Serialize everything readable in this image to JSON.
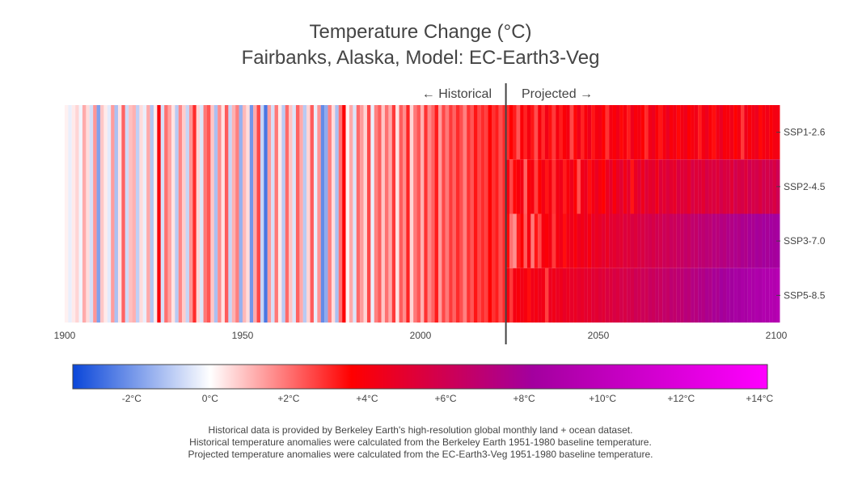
{
  "title_line1": "Temperature Change (°C)",
  "title_line2": "Fairbanks, Alaska, Model: EC-Earth3-Veg",
  "annotations": {
    "historical": "← Historical",
    "projected": "Projected →"
  },
  "footnotes": [
    "Historical data is provided by Berkeley Earth's high-resolution global monthly land + ocean dataset.",
    "Historical temperature anomalies were calculated from the Berkeley Earth 1951-1980 baseline temperature.",
    "Projected temperature anomalies were calculated from the EC-Earth3-Veg 1951-1980 baseline temperature."
  ],
  "chart_data": {
    "type": "heatmap",
    "x_axis": {
      "range": [
        1900,
        2100
      ],
      "ticks": [
        1900,
        1950,
        2000,
        2050,
        2100
      ]
    },
    "divider_year": 2024,
    "rows": [
      "SSP1-2.6",
      "SSP2-4.5",
      "SSP3-7.0",
      "SSP5-8.5"
    ],
    "historical": {
      "years": [
        1900,
        2023
      ],
      "values": [
        0.2,
        -0.3,
        0.3,
        0.6,
        -0.2,
        1.2,
        0.5,
        -0.6,
        1.5,
        -1.8,
        0.8,
        0.3,
        -0.4,
        1.4,
        -1.2,
        0.4,
        2.2,
        -0.7,
        0.9,
        1.1,
        -0.9,
        0.5,
        -0.3,
        1.2,
        -1.1,
        0.3,
        3.9,
        -0.6,
        2.0,
        1.3,
        0.4,
        -1.0,
        1.7,
        0.7,
        -0.8,
        1.5,
        3.0,
        0.6,
        -0.5,
        1.9,
        2.4,
        0.8,
        -1.2,
        1.6,
        0.4,
        2.3,
        -0.8,
        1.1,
        1.8,
        -1.5,
        1.0,
        0.5,
        -2.0,
        1.2,
        2.6,
        -0.8,
        -2.6,
        1.4,
        -0.6,
        1.9,
        0.3,
        -1.0,
        2.1,
        0.8,
        -0.5,
        2.2,
        1.2,
        -1.0,
        0.6,
        2.3,
        -0.3,
        1.5,
        -2.2,
        -1.6,
        1.8,
        0.5,
        -1.2,
        2.0,
        3.7,
        0.2,
        1.2,
        -0.5,
        2.1,
        1.4,
        0.6,
        2.6,
        -0.3,
        1.8,
        2.3,
        0.8,
        2.0,
        1.2,
        2.8,
        0.4,
        2.3,
        1.6,
        3.1,
        0.6,
        1.9,
        2.4,
        1.1,
        2.9,
        1.7,
        2.2,
        3.2,
        1.4,
        2.6,
        1.9,
        2.8,
        2.2,
        3.0,
        2.5,
        1.8,
        2.9,
        2.4,
        3.3,
        2.6,
        3.0,
        2.7,
        3.6,
        2.9,
        3.2,
        2.5,
        3.0
      ]
    },
    "projected": {
      "years": [
        2024,
        2100
      ],
      "series": [
        {
          "name": "SSP1-2.6",
          "values": [
            3.0,
            3.6,
            3.2,
            2.4,
            3.8,
            3.1,
            4.0,
            3.3,
            2.5,
            3.9,
            3.0,
            4.2,
            3.4,
            2.8,
            4.0,
            3.2,
            3.8,
            4.1,
            2.6,
            3.5,
            4.3,
            3.1,
            3.9,
            4.4,
            3.3,
            4.0,
            4.2,
            3.6,
            2.9,
            4.1,
            3.8,
            4.3,
            3.5,
            4.0,
            3.2,
            4.4,
            3.9,
            4.1,
            3.7,
            3.0,
            4.2,
            4.5,
            3.8,
            3.3,
            4.0,
            4.6,
            3.9,
            4.2,
            3.5,
            4.1,
            4.4,
            3.7,
            4.0,
            4.3,
            3.2,
            4.1,
            4.5,
            3.8,
            3.4,
            4.2,
            4.6,
            3.9,
            4.0,
            4.3,
            3.6,
            4.1,
            2.8,
            4.4,
            3.9,
            4.2,
            4.5,
            3.5,
            4.0,
            4.3,
            3.8,
            4.1,
            4.2
          ]
        },
        {
          "name": "SSP2-4.5",
          "values": [
            4.0,
            2.6,
            3.5,
            3.9,
            4.1,
            2.2,
            3.8,
            4.0,
            2.7,
            3.6,
            4.2,
            3.3,
            4.0,
            2.9,
            4.1,
            4.3,
            3.2,
            3.9,
            4.4,
            3.7,
            2.5,
            4.2,
            4.5,
            3.4,
            4.1,
            4.6,
            4.0,
            3.6,
            4.5,
            4.8,
            3.9,
            4.7,
            5.0,
            4.2,
            4.9,
            3.3,
            4.6,
            5.1,
            4.4,
            5.2,
            4.8,
            5.0,
            4.3,
            5.3,
            4.9,
            5.4,
            5.0,
            4.7,
            5.5,
            5.1,
            5.3,
            4.8,
            5.6,
            5.2,
            5.4,
            5.0,
            5.7,
            5.3,
            5.5,
            5.2,
            5.8,
            5.4,
            5.6,
            5.1,
            5.9,
            5.5,
            5.7,
            5.3,
            6.0,
            5.6,
            5.8,
            5.4,
            6.0,
            5.7,
            5.9,
            5.5,
            6.1
          ]
        },
        {
          "name": "SSP3-7.0",
          "values": [
            3.5,
            2.0,
            1.6,
            3.2,
            3.7,
            2.3,
            4.0,
            1.9,
            3.3,
            2.6,
            4.0,
            3.8,
            4.1,
            2.8,
            4.0,
            4.3,
            3.4,
            4.2,
            4.4,
            3.9,
            4.5,
            4.2,
            4.6,
            4.0,
            4.8,
            4.5,
            4.7,
            5.0,
            4.6,
            5.1,
            4.9,
            5.2,
            5.0,
            5.4,
            5.2,
            5.5,
            5.3,
            5.7,
            5.5,
            5.8,
            5.9,
            5.6,
            6.0,
            5.8,
            6.2,
            6.0,
            6.3,
            6.1,
            6.5,
            6.3,
            6.7,
            6.4,
            6.8,
            6.6,
            7.0,
            6.8,
            7.1,
            6.9,
            7.3,
            7.1,
            7.4,
            7.2,
            7.6,
            7.4,
            7.7,
            7.5,
            7.8,
            7.6,
            8.0,
            7.8,
            8.1,
            7.9,
            8.2,
            8.0,
            8.3,
            8.1,
            8.4
          ]
        },
        {
          "name": "SSP5-8.5",
          "values": [
            4.0,
            2.8,
            4.1,
            3.9,
            4.2,
            4.0,
            3.4,
            4.3,
            4.1,
            4.4,
            4.2,
            2.7,
            4.5,
            4.3,
            4.6,
            4.4,
            4.7,
            4.5,
            4.8,
            4.6,
            4.9,
            4.7,
            5.0,
            4.8,
            5.2,
            5.0,
            5.3,
            5.1,
            5.5,
            5.3,
            5.6,
            5.4,
            5.8,
            5.6,
            5.9,
            5.7,
            6.1,
            5.9,
            6.2,
            6.0,
            6.4,
            6.2,
            6.5,
            6.3,
            6.7,
            6.5,
            6.9,
            6.7,
            7.0,
            6.8,
            7.2,
            7.0,
            7.4,
            7.2,
            7.6,
            7.4,
            7.8,
            7.6,
            8.0,
            7.8,
            8.2,
            8.0,
            8.4,
            8.2,
            8.5,
            8.3,
            8.7,
            8.5,
            8.9,
            8.7,
            9.0,
            8.8,
            9.2,
            9.0,
            9.4,
            9.2,
            9.5
          ]
        }
      ]
    },
    "colorbar": {
      "range": [
        -3.5,
        14.2
      ],
      "stops": [
        {
          "v": -3.5,
          "c": "#0a46d9"
        },
        {
          "v": 0,
          "c": "#ffffff"
        },
        {
          "v": 3.6,
          "c": "#ff0000"
        },
        {
          "v": 8.2,
          "c": "#a3009e"
        },
        {
          "v": 14.2,
          "c": "#ff00ff"
        }
      ],
      "ticks": [
        {
          "v": -2,
          "label": "-2°C"
        },
        {
          "v": 0,
          "label": "0°C"
        },
        {
          "v": 2,
          "label": "+2°C"
        },
        {
          "v": 4,
          "label": "+4°C"
        },
        {
          "v": 6,
          "label": "+6°C"
        },
        {
          "v": 8,
          "label": "+8°C"
        },
        {
          "v": 10,
          "label": "+10°C"
        },
        {
          "v": 12,
          "label": "+12°C"
        },
        {
          "v": 14,
          "label": "+14°C"
        }
      ]
    }
  }
}
